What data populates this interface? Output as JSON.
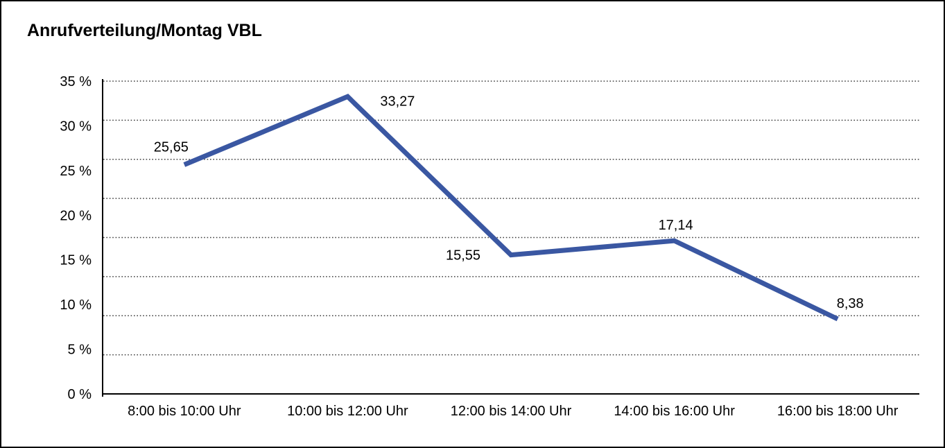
{
  "page": {
    "background_color": "#ffffff",
    "frame_border_color": "#000000"
  },
  "chart_data": {
    "type": "line",
    "title": "Anrufverteilung/Montag VBL",
    "categories": [
      "8:00 bis 10:00 Uhr",
      "10:00 bis 12:00 Uhr",
      "12:00 bis 14:00 Uhr",
      "14:00 bis 16:00 Uhr",
      "16:00 bis 18:00 Uhr"
    ],
    "series": [
      {
        "values": [
          25.65,
          33.27,
          15.55,
          17.14,
          8.38
        ],
        "color": "#3A57A2",
        "stroke_width": 7,
        "data_labels": [
          {
            "text": "25,65",
            "dx": -19,
            "dy": -26
          },
          {
            "text": "33,27",
            "dx": 72,
            "dy": 6
          },
          {
            "text": "15,55",
            "dx": -69,
            "dy": 0
          },
          {
            "text": "17,14",
            "dx": 2,
            "dy": -23
          },
          {
            "text": "8,38",
            "dx": 18,
            "dy": -23
          }
        ]
      }
    ],
    "xlabel": "",
    "ylabel": "",
    "ylim": [
      0,
      35
    ],
    "y_axis": {
      "tick_labels": [
        "35 %",
        "30 %",
        "25 %",
        "20 %",
        "15 %",
        "10 %",
        "5 %",
        "0 %"
      ],
      "grid_intervals": 8,
      "grid_style": "dotted",
      "grid_color": "#3d3d3d",
      "axis_color": "#000000"
    },
    "legend": "none",
    "text_color": "#000000",
    "tick_font_size": 20,
    "data_label_font_size": 20
  }
}
